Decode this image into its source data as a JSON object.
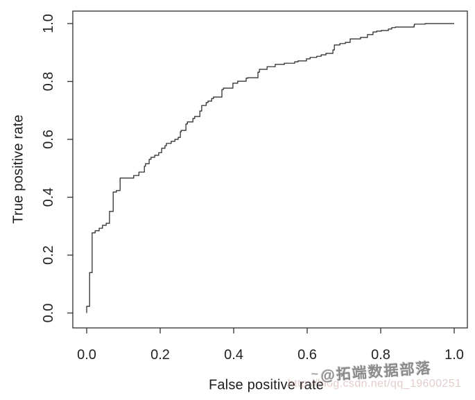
{
  "chart_data": {
    "type": "line",
    "subtype": "roc-step-curve",
    "title": "",
    "xlabel": "False positive rate",
    "ylabel": "True positive rate",
    "xlim": [
      0,
      1
    ],
    "ylim": [
      0,
      1
    ],
    "grid": false,
    "legend": "none",
    "frame": "box",
    "x_ticks": {
      "values": [
        0.0,
        0.2,
        0.4,
        0.6,
        0.8,
        1.0
      ],
      "labels": [
        "0.0",
        "0.2",
        "0.4",
        "0.6",
        "0.8",
        "1.0"
      ]
    },
    "y_ticks": {
      "values": [
        0.0,
        0.2,
        0.4,
        0.6,
        0.8,
        1.0
      ],
      "labels": [
        "0.0",
        "0.2",
        "0.4",
        "0.6",
        "0.8",
        "1.0"
      ]
    },
    "colors": {
      "curve": "#1f1f1f",
      "axis": "#2e2e2e",
      "tick_text": "#222222"
    },
    "series": [
      {
        "name": "ROC curve",
        "interpolation": "step-vertical-then-horizontal",
        "points": [
          [
            0.0,
            0.0
          ],
          [
            0.0,
            0.023
          ],
          [
            0.008,
            0.023
          ],
          [
            0.008,
            0.14
          ],
          [
            0.015,
            0.14
          ],
          [
            0.015,
            0.272
          ],
          [
            0.023,
            0.277
          ],
          [
            0.034,
            0.284
          ],
          [
            0.043,
            0.293
          ],
          [
            0.053,
            0.303
          ],
          [
            0.062,
            0.31
          ],
          [
            0.062,
            0.346
          ],
          [
            0.072,
            0.351
          ],
          [
            0.072,
            0.416
          ],
          [
            0.081,
            0.418
          ],
          [
            0.091,
            0.423
          ],
          [
            0.091,
            0.466
          ],
          [
            0.128,
            0.466
          ],
          [
            0.128,
            0.475
          ],
          [
            0.142,
            0.475
          ],
          [
            0.145,
            0.487
          ],
          [
            0.157,
            0.487
          ],
          [
            0.16,
            0.507
          ],
          [
            0.17,
            0.516
          ],
          [
            0.175,
            0.531
          ],
          [
            0.185,
            0.538
          ],
          [
            0.196,
            0.545
          ],
          [
            0.204,
            0.554
          ],
          [
            0.213,
            0.569
          ],
          [
            0.217,
            0.578
          ],
          [
            0.23,
            0.586
          ],
          [
            0.24,
            0.593
          ],
          [
            0.249,
            0.6
          ],
          [
            0.255,
            0.607
          ],
          [
            0.257,
            0.626
          ],
          [
            0.27,
            0.631
          ],
          [
            0.274,
            0.653
          ],
          [
            0.289,
            0.66
          ],
          [
            0.294,
            0.672
          ],
          [
            0.308,
            0.679
          ],
          [
            0.313,
            0.698
          ],
          [
            0.325,
            0.717
          ],
          [
            0.33,
            0.727
          ],
          [
            0.34,
            0.732
          ],
          [
            0.345,
            0.741
          ],
          [
            0.368,
            0.746
          ],
          [
            0.372,
            0.772
          ],
          [
            0.398,
            0.777
          ],
          [
            0.411,
            0.794
          ],
          [
            0.434,
            0.801
          ],
          [
            0.438,
            0.811
          ],
          [
            0.466,
            0.813
          ],
          [
            0.47,
            0.832
          ],
          [
            0.491,
            0.842
          ],
          [
            0.513,
            0.851
          ],
          [
            0.538,
            0.859
          ],
          [
            0.566,
            0.863
          ],
          [
            0.575,
            0.868
          ],
          [
            0.598,
            0.871
          ],
          [
            0.608,
            0.878
          ],
          [
            0.626,
            0.883
          ],
          [
            0.638,
            0.887
          ],
          [
            0.651,
            0.892
          ],
          [
            0.67,
            0.897
          ],
          [
            0.674,
            0.909
          ],
          [
            0.689,
            0.926
          ],
          [
            0.704,
            0.931
          ],
          [
            0.717,
            0.935
          ],
          [
            0.745,
            0.947
          ],
          [
            0.764,
            0.952
          ],
          [
            0.779,
            0.962
          ],
          [
            0.789,
            0.971
          ],
          [
            0.802,
            0.974
          ],
          [
            0.821,
            0.976
          ],
          [
            0.83,
            0.981
          ],
          [
            0.84,
            0.986
          ],
          [
            0.891,
            0.988
          ],
          [
            0.892,
            0.995
          ],
          [
            0.921,
            0.998
          ],
          [
            0.925,
            1.0
          ],
          [
            1.0,
            1.0
          ]
        ]
      }
    ]
  },
  "watermarks": {
    "brand_mark": "~",
    "brand": "@拓端数据部落",
    "url": "http://blog.csdn.net/qq_19600251"
  }
}
